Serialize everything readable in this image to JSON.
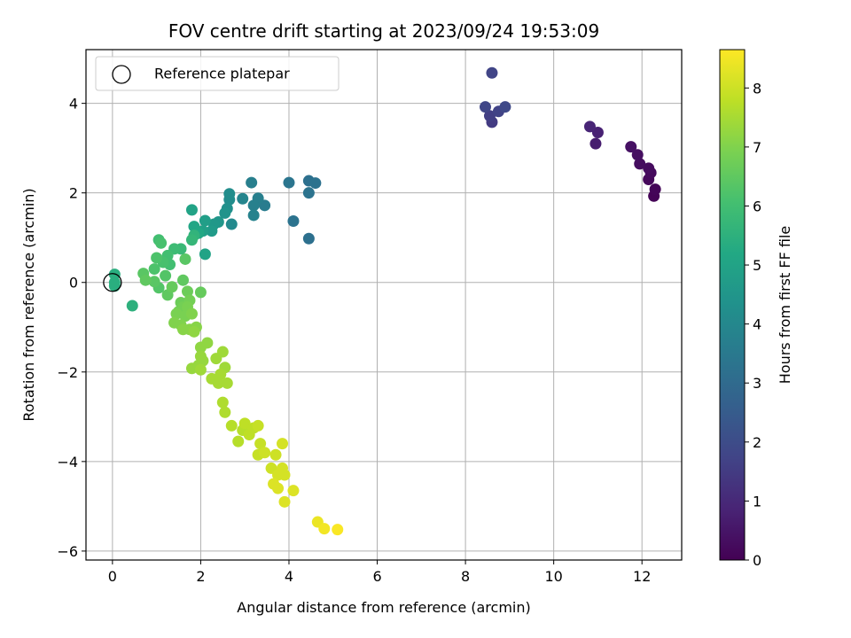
{
  "chart_data": {
    "type": "scatter",
    "title": "FOV centre drift starting at 2023/09/24 19:53:09",
    "xlabel": "Angular distance from reference (arcmin)",
    "ylabel": "Rotation from reference (arcmin)",
    "xlim": [
      -0.6,
      12.9
    ],
    "ylim": [
      -6.2,
      5.2
    ],
    "xticks": [
      0,
      2,
      4,
      6,
      8,
      10,
      12
    ],
    "yticks": [
      -6,
      -4,
      -2,
      0,
      2,
      4
    ],
    "grid": true,
    "legend": {
      "position": "top-left",
      "entries": [
        "Reference platepar"
      ]
    },
    "reference_point": {
      "x": 0,
      "y": 0
    },
    "colorbar": {
      "label": "Hours from first FF file",
      "colormap": "viridis",
      "range": [
        0,
        8.65
      ],
      "ticks": [
        0,
        1,
        2,
        3,
        4,
        5,
        6,
        7,
        8
      ]
    },
    "points": [
      {
        "x": 12.27,
        "y": 1.93,
        "c": 0.05
      },
      {
        "x": 12.3,
        "y": 2.08,
        "c": 0.1
      },
      {
        "x": 12.15,
        "y": 2.3,
        "c": 0.15
      },
      {
        "x": 12.2,
        "y": 2.45,
        "c": 0.2
      },
      {
        "x": 12.15,
        "y": 2.55,
        "c": 0.25
      },
      {
        "x": 11.95,
        "y": 2.65,
        "c": 0.3
      },
      {
        "x": 11.9,
        "y": 2.85,
        "c": 0.35
      },
      {
        "x": 11.75,
        "y": 3.03,
        "c": 0.4
      },
      {
        "x": 10.95,
        "y": 3.1,
        "c": 0.7
      },
      {
        "x": 11.0,
        "y": 3.35,
        "c": 0.8
      },
      {
        "x": 10.82,
        "y": 3.48,
        "c": 0.9
      },
      {
        "x": 8.6,
        "y": 3.58,
        "c": 1.5
      },
      {
        "x": 8.55,
        "y": 3.72,
        "c": 1.6
      },
      {
        "x": 8.75,
        "y": 3.82,
        "c": 1.7
      },
      {
        "x": 8.45,
        "y": 3.92,
        "c": 1.8
      },
      {
        "x": 8.9,
        "y": 3.92,
        "c": 1.9
      },
      {
        "x": 8.6,
        "y": 4.68,
        "c": 1.75
      },
      {
        "x": 4.45,
        "y": 0.98,
        "c": 3.2
      },
      {
        "x": 4.1,
        "y": 1.37,
        "c": 3.3
      },
      {
        "x": 4.45,
        "y": 2.0,
        "c": 3.3
      },
      {
        "x": 4.45,
        "y": 2.27,
        "c": 3.2
      },
      {
        "x": 4.6,
        "y": 2.22,
        "c": 3.25
      },
      {
        "x": 4.0,
        "y": 2.23,
        "c": 3.35
      },
      {
        "x": 3.45,
        "y": 1.72,
        "c": 3.6
      },
      {
        "x": 3.3,
        "y": 1.88,
        "c": 3.7
      },
      {
        "x": 3.2,
        "y": 1.72,
        "c": 3.75
      },
      {
        "x": 3.2,
        "y": 1.5,
        "c": 3.8
      },
      {
        "x": 3.15,
        "y": 2.23,
        "c": 3.7
      },
      {
        "x": 2.95,
        "y": 1.87,
        "c": 3.9
      },
      {
        "x": 2.7,
        "y": 1.3,
        "c": 4.1
      },
      {
        "x": 2.65,
        "y": 1.85,
        "c": 4.2
      },
      {
        "x": 2.65,
        "y": 1.98,
        "c": 4.2
      },
      {
        "x": 2.6,
        "y": 1.65,
        "c": 4.3
      },
      {
        "x": 2.55,
        "y": 1.55,
        "c": 4.4
      },
      {
        "x": 2.4,
        "y": 1.35,
        "c": 4.5
      },
      {
        "x": 2.3,
        "y": 1.3,
        "c": 4.6
      },
      {
        "x": 2.25,
        "y": 1.15,
        "c": 4.7
      },
      {
        "x": 2.1,
        "y": 1.38,
        "c": 4.8
      },
      {
        "x": 2.05,
        "y": 1.15,
        "c": 4.9
      },
      {
        "x": 2.1,
        "y": 0.63,
        "c": 5.0
      },
      {
        "x": 1.85,
        "y": 1.25,
        "c": 5.1
      },
      {
        "x": 1.8,
        "y": 1.62,
        "c": 5.0
      },
      {
        "x": 1.95,
        "y": 1.1,
        "c": 5.2
      },
      {
        "x": 0.05,
        "y": 0.18,
        "c": 5.4
      },
      {
        "x": 0.05,
        "y": 0.0,
        "c": 5.4
      },
      {
        "x": 0.05,
        "y": -0.08,
        "c": 5.4
      },
      {
        "x": 0.45,
        "y": -0.52,
        "c": 5.5
      },
      {
        "x": 1.85,
        "y": 1.05,
        "c": 5.6
      },
      {
        "x": 1.8,
        "y": 0.95,
        "c": 5.7
      },
      {
        "x": 1.65,
        "y": 0.52,
        "c": 6.4
      },
      {
        "x": 1.55,
        "y": 0.75,
        "c": 5.8
      },
      {
        "x": 1.4,
        "y": 0.75,
        "c": 5.9
      },
      {
        "x": 1.3,
        "y": 0.4,
        "c": 6.0
      },
      {
        "x": 1.25,
        "y": 0.6,
        "c": 6.0
      },
      {
        "x": 1.15,
        "y": 0.45,
        "c": 6.1
      },
      {
        "x": 1.05,
        "y": 0.95,
        "c": 6.0
      },
      {
        "x": 1.1,
        "y": 0.88,
        "c": 6.1
      },
      {
        "x": 1.0,
        "y": 0.55,
        "c": 6.2
      },
      {
        "x": 0.95,
        "y": 0.3,
        "c": 6.2
      },
      {
        "x": 1.2,
        "y": 0.15,
        "c": 6.3
      },
      {
        "x": 1.05,
        "y": -0.12,
        "c": 6.3
      },
      {
        "x": 0.95,
        "y": 0.02,
        "c": 6.4
      },
      {
        "x": 0.7,
        "y": 0.2,
        "c": 6.4
      },
      {
        "x": 0.75,
        "y": 0.05,
        "c": 6.5
      },
      {
        "x": 1.25,
        "y": -0.28,
        "c": 6.5
      },
      {
        "x": 1.35,
        "y": -0.1,
        "c": 6.6
      },
      {
        "x": 1.6,
        "y": 0.05,
        "c": 6.5
      },
      {
        "x": 2.0,
        "y": -0.22,
        "c": 6.6
      },
      {
        "x": 1.7,
        "y": -0.2,
        "c": 6.7
      },
      {
        "x": 1.55,
        "y": -0.45,
        "c": 6.7
      },
      {
        "x": 1.75,
        "y": -0.4,
        "c": 6.8
      },
      {
        "x": 1.6,
        "y": -0.55,
        "c": 6.8
      },
      {
        "x": 1.5,
        "y": -0.65,
        "c": 6.8
      },
      {
        "x": 1.45,
        "y": -0.7,
        "c": 6.9
      },
      {
        "x": 1.7,
        "y": -0.55,
        "c": 6.9
      },
      {
        "x": 1.65,
        "y": -0.75,
        "c": 6.9
      },
      {
        "x": 1.8,
        "y": -0.7,
        "c": 7.0
      },
      {
        "x": 1.4,
        "y": -0.9,
        "c": 7.0
      },
      {
        "x": 1.55,
        "y": -0.95,
        "c": 7.0
      },
      {
        "x": 1.6,
        "y": -1.05,
        "c": 7.1
      },
      {
        "x": 1.75,
        "y": -1.05,
        "c": 7.1
      },
      {
        "x": 1.9,
        "y": -1.0,
        "c": 7.1
      },
      {
        "x": 1.85,
        "y": -1.1,
        "c": 7.2
      },
      {
        "x": 2.0,
        "y": -1.45,
        "c": 7.2
      },
      {
        "x": 2.15,
        "y": -1.35,
        "c": 7.2
      },
      {
        "x": 2.0,
        "y": -1.65,
        "c": 7.3
      },
      {
        "x": 1.8,
        "y": -1.92,
        "c": 7.3
      },
      {
        "x": 1.95,
        "y": -1.85,
        "c": 7.3
      },
      {
        "x": 2.05,
        "y": -1.75,
        "c": 7.3
      },
      {
        "x": 2.0,
        "y": -1.95,
        "c": 7.4
      },
      {
        "x": 2.35,
        "y": -1.7,
        "c": 7.4
      },
      {
        "x": 2.5,
        "y": -1.55,
        "c": 7.4
      },
      {
        "x": 2.55,
        "y": -1.9,
        "c": 7.4
      },
      {
        "x": 2.45,
        "y": -2.05,
        "c": 7.5
      },
      {
        "x": 2.25,
        "y": -2.15,
        "c": 7.5
      },
      {
        "x": 2.4,
        "y": -2.25,
        "c": 7.5
      },
      {
        "x": 2.6,
        "y": -2.25,
        "c": 7.5
      },
      {
        "x": 2.5,
        "y": -2.68,
        "c": 7.6
      },
      {
        "x": 2.55,
        "y": -2.9,
        "c": 7.6
      },
      {
        "x": 2.7,
        "y": -3.2,
        "c": 7.7
      },
      {
        "x": 2.85,
        "y": -3.55,
        "c": 7.7
      },
      {
        "x": 2.95,
        "y": -3.3,
        "c": 7.7
      },
      {
        "x": 3.0,
        "y": -3.15,
        "c": 7.8
      },
      {
        "x": 3.1,
        "y": -3.4,
        "c": 7.8
      },
      {
        "x": 3.2,
        "y": -3.25,
        "c": 7.8
      },
      {
        "x": 3.3,
        "y": -3.2,
        "c": 7.9
      },
      {
        "x": 3.35,
        "y": -3.6,
        "c": 7.9
      },
      {
        "x": 3.3,
        "y": -3.85,
        "c": 7.9
      },
      {
        "x": 3.45,
        "y": -3.8,
        "c": 8.0
      },
      {
        "x": 3.6,
        "y": -4.15,
        "c": 8.0
      },
      {
        "x": 3.7,
        "y": -3.85,
        "c": 8.0
      },
      {
        "x": 3.85,
        "y": -3.6,
        "c": 8.1
      },
      {
        "x": 3.75,
        "y": -4.3,
        "c": 8.1
      },
      {
        "x": 3.85,
        "y": -4.15,
        "c": 8.1
      },
      {
        "x": 3.9,
        "y": -4.3,
        "c": 8.1
      },
      {
        "x": 3.65,
        "y": -4.5,
        "c": 8.2
      },
      {
        "x": 3.75,
        "y": -4.6,
        "c": 8.2
      },
      {
        "x": 3.9,
        "y": -4.9,
        "c": 8.2
      },
      {
        "x": 4.1,
        "y": -4.65,
        "c": 8.2
      },
      {
        "x": 4.65,
        "y": -5.35,
        "c": 8.4
      },
      {
        "x": 4.8,
        "y": -5.5,
        "c": 8.5
      },
      {
        "x": 5.1,
        "y": -5.52,
        "c": 8.6
      }
    ]
  }
}
